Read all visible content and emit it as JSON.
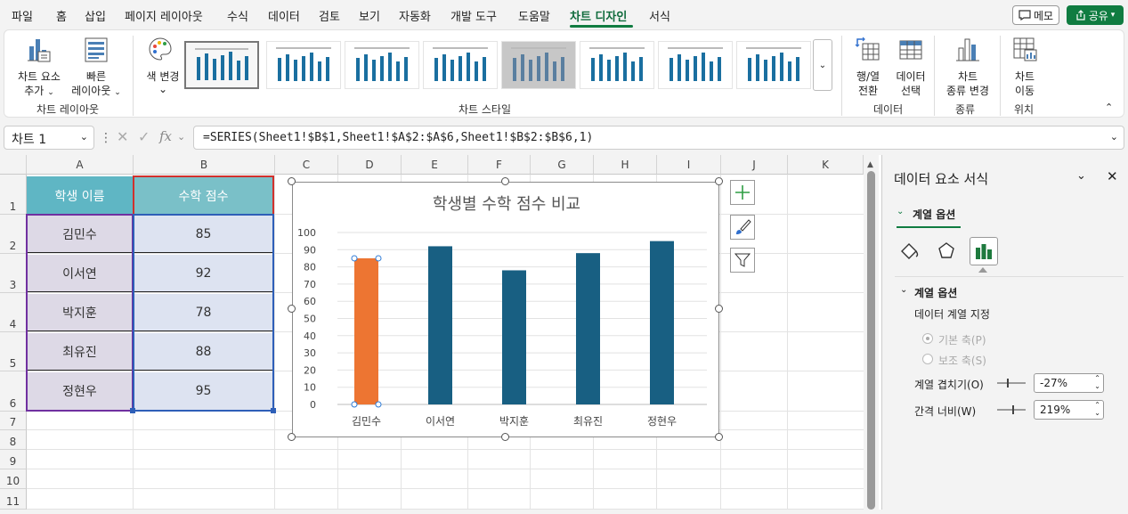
{
  "menu": {
    "items": [
      "파일",
      "홈",
      "삽입",
      "페이지 레이아웃",
      "수식",
      "데이터",
      "검토",
      "보기",
      "자동화",
      "개발 도구",
      "도움말",
      "차트 디자인",
      "서식"
    ],
    "memo": "메모",
    "share": "공유"
  },
  "ribbon": {
    "add_element": [
      "차트 요소",
      "추가"
    ],
    "quick_layout": [
      "빠른",
      "레이아웃"
    ],
    "color_change": "색 변경",
    "switch_rowcol": [
      "행/열",
      "전환"
    ],
    "select_data": [
      "데이터",
      "선택"
    ],
    "change_type": [
      "차트",
      "종류 변경"
    ],
    "move_chart": [
      "차트",
      "이동"
    ],
    "groups": {
      "layout": "차트 레이아웃",
      "style": "차트 스타일",
      "data": "데이터",
      "type": "종류",
      "location": "위치"
    }
  },
  "formula_bar": {
    "name_box": "차트 1",
    "fx": "fx",
    "formula": "=SERIES(Sheet1!$B$1,Sheet1!$A$2:$A$6,Sheet1!$B$2:$B$6,1)"
  },
  "sheet": {
    "columns": [
      "A",
      "B",
      "C",
      "D",
      "E",
      "F",
      "G",
      "H",
      "I",
      "J",
      "K"
    ],
    "rows": [
      "1",
      "2",
      "3",
      "4",
      "5",
      "6",
      "7",
      "8",
      "9",
      "10",
      "11"
    ],
    "header": {
      "name": "학생 이름",
      "score": "수학 점수"
    },
    "data": [
      {
        "name": "김민수",
        "score": "85"
      },
      {
        "name": "이서연",
        "score": "92"
      },
      {
        "name": "박지훈",
        "score": "78"
      },
      {
        "name": "최유진",
        "score": "88"
      },
      {
        "name": "정현우",
        "score": "95"
      }
    ]
  },
  "chart_data": {
    "type": "bar",
    "title": "학생별 수학 점수 비교",
    "categories": [
      "김민수",
      "이서연",
      "박지훈",
      "최유진",
      "정현우"
    ],
    "values": [
      85,
      92,
      78,
      88,
      95
    ],
    "ylim": [
      0,
      100
    ],
    "yticks": [
      "0",
      "10",
      "20",
      "30",
      "40",
      "50",
      "60",
      "70",
      "80",
      "90",
      "100"
    ],
    "bar_color": "#185f82",
    "selected_color": "#ed7532",
    "selected_index": 0,
    "grid": true
  },
  "pane": {
    "title": "데이터 요소 서식",
    "tab": "계열 옵션",
    "section": "계열 옵션",
    "plot_on": "데이터 계열 지정",
    "primary": "기본 축(P)",
    "secondary": "보조 축(S)",
    "overlap_label": "계열 겹치기(O)",
    "overlap_value": "-27%",
    "gap_label": "간격 너비(W)",
    "gap_value": "219%"
  }
}
